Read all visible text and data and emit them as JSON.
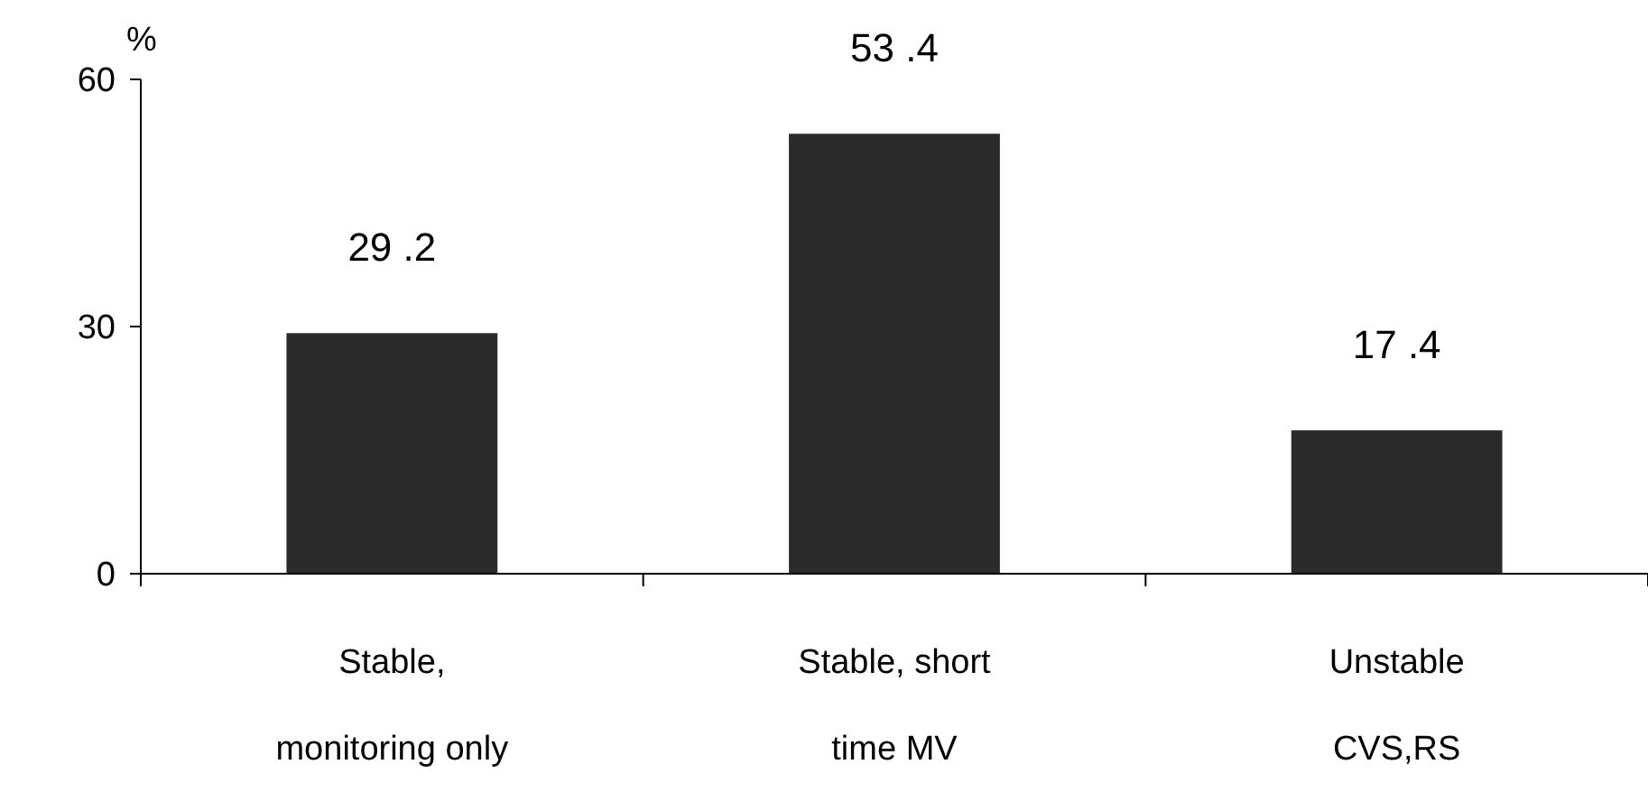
{
  "chart_data": {
    "type": "bar",
    "ylabel": "%",
    "categories": [
      "Stable,\nmonitoring only",
      "Stable, short\ntime MV",
      "Unstable\nCVS,RS"
    ],
    "values": [
      29.2,
      53.4,
      17.4
    ],
    "color": "#2b2b2b",
    "value_labels": [
      "29 .2",
      "53 .4",
      "17 .4"
    ],
    "ylim": [
      0,
      60
    ],
    "yticks": [
      0,
      30,
      60
    ]
  }
}
